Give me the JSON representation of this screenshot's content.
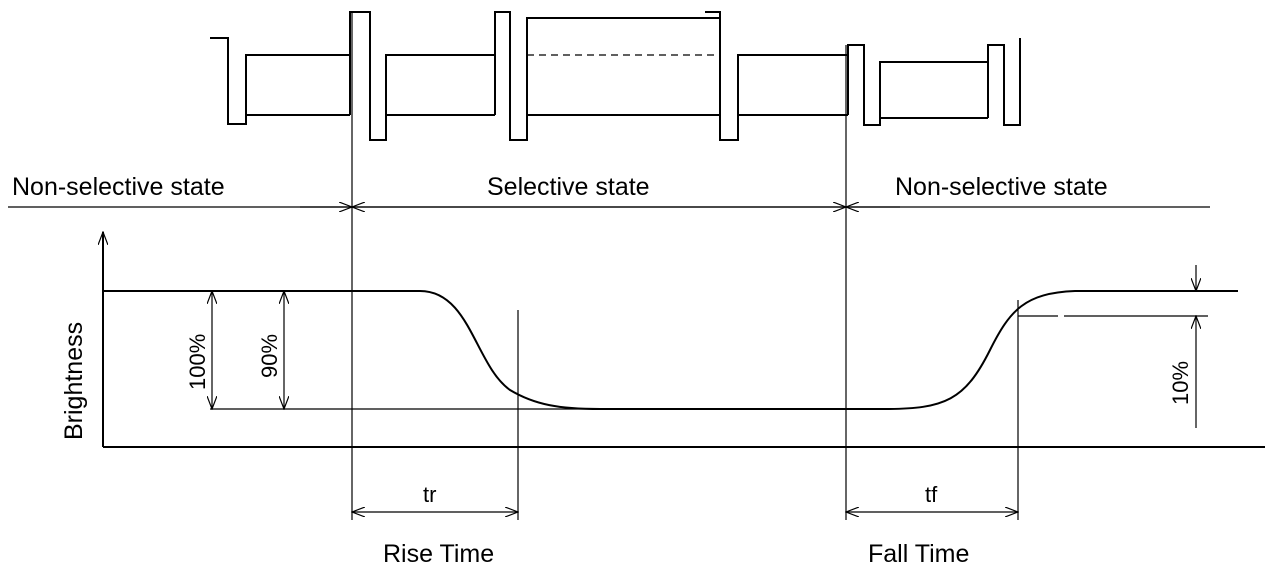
{
  "labels": {
    "state_left": "Non-selective state",
    "state_mid": "Selective state",
    "state_right": "Non-selective state",
    "y_axis": "Brightness",
    "pct_100": "100%",
    "pct_90": "90%",
    "pct_10": "10%",
    "tr": "tr",
    "tf": "tf",
    "rise_time": "Rise Time",
    "fall_time": "Fall Time"
  },
  "colors": {
    "line": "#000000",
    "background": "#ffffff"
  }
}
